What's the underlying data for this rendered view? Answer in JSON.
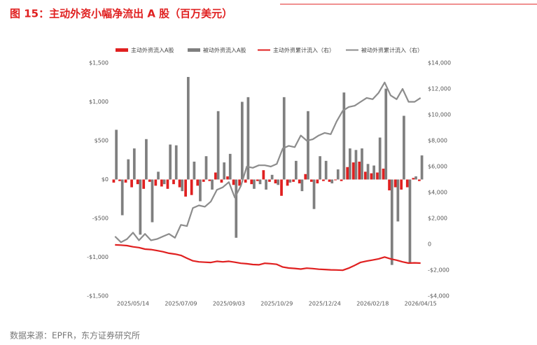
{
  "chart_data": {
    "type": "bar",
    "title": "图 15：主动外资小幅净流出 A 股（百万美元）",
    "source": "数据来源：EPFR，东方证券研究所",
    "categories": [
      null,
      null,
      null,
      "2025/05/14",
      null,
      null,
      null,
      null,
      null,
      null,
      null,
      "2025/07/09",
      null,
      null,
      null,
      null,
      null,
      null,
      null,
      "2025/09/03",
      null,
      null,
      null,
      null,
      null,
      null,
      null,
      "2025/10/29",
      null,
      null,
      null,
      null,
      null,
      null,
      null,
      "2025/12/24",
      null,
      null,
      null,
      null,
      null,
      null,
      null,
      "2026/02/18",
      null,
      null,
      null,
      null,
      null,
      null,
      null,
      "2026/04/15"
    ],
    "series": [
      {
        "name": "主动外资流入A股",
        "type": "bar",
        "color": "#e02020",
        "values": [
          -40,
          -20,
          -40,
          -100,
          -60,
          -120,
          -30,
          -80,
          -90,
          -120,
          -60,
          -100,
          -220,
          -200,
          -80,
          -30,
          -20,
          90,
          -40,
          40,
          -70,
          -80,
          -40,
          -60,
          -20,
          120,
          -30,
          -50,
          -210,
          -80,
          -30,
          -50,
          70,
          -30,
          -50,
          -20,
          -30,
          -10,
          -20,
          160,
          220,
          230,
          100,
          80,
          90,
          140,
          -140,
          -100,
          -130,
          -100,
          20,
          -20
        ]
      },
      {
        "name": "被动外资流入A股",
        "type": "bar",
        "color": "#7f7f7f",
        "values": [
          640,
          -460,
          260,
          400,
          -710,
          520,
          -550,
          100,
          -60,
          450,
          440,
          -150,
          1320,
          230,
          -280,
          300,
          -130,
          880,
          220,
          330,
          -750,
          1000,
          1060,
          -120,
          -60,
          -130,
          60,
          -70,
          1060,
          -40,
          240,
          -150,
          880,
          -380,
          300,
          240,
          -50,
          130,
          1120,
          400,
          380,
          400,
          200,
          180,
          540,
          1170,
          -1100,
          -540,
          820,
          -1080,
          40,
          310
        ]
      },
      {
        "name": "主动外资累计流入（右）",
        "type": "line",
        "axis": "y2",
        "color": "#e02020",
        "values": [
          -50,
          -70,
          -110,
          -200,
          -260,
          -380,
          -410,
          -490,
          -580,
          -700,
          -760,
          -860,
          -1080,
          -1280,
          -1360,
          -1390,
          -1410,
          -1320,
          -1360,
          -1320,
          -1390,
          -1470,
          -1510,
          -1570,
          -1590,
          -1470,
          -1500,
          -1550,
          -1760,
          -1840,
          -1870,
          -1920,
          -1850,
          -1880,
          -1930,
          -1950,
          -1980,
          -1990,
          -2010,
          -1850,
          -1630,
          -1400,
          -1300,
          -1220,
          -1130,
          -990,
          -1130,
          -1230,
          -1360,
          -1460,
          -1440,
          -1460
        ]
      },
      {
        "name": "被动外资累计流入（右）",
        "type": "line",
        "axis": "y2",
        "color": "#8c8c8c",
        "values": [
          600,
          150,
          400,
          900,
          300,
          800,
          300,
          400,
          600,
          800,
          500,
          1500,
          1400,
          2800,
          3000,
          2900,
          3300,
          4200,
          4400,
          4800,
          3600,
          4500,
          6000,
          5900,
          6100,
          6100,
          6000,
          6200,
          7400,
          7600,
          7500,
          8400,
          8000,
          8100,
          8400,
          8600,
          8500,
          9500,
          10300,
          10600,
          10700,
          11000,
          11300,
          11200,
          11700,
          12500,
          11500,
          11200,
          12000,
          11000,
          11000,
          11300
        ]
      }
    ],
    "ylim": [
      -1500,
      1500
    ],
    "yticks": [
      {
        "value": -1500,
        "label": "-$1,500"
      },
      {
        "value": -1000,
        "label": "-$1,000"
      },
      {
        "value": -500,
        "label": "-$500"
      },
      {
        "value": 0,
        "label": "$0"
      },
      {
        "value": 500,
        "label": "$500"
      },
      {
        "value": 1000,
        "label": "$1,000"
      },
      {
        "value": 1500,
        "label": "$1,500"
      }
    ],
    "y2lim": [
      -4000,
      14000
    ],
    "y2ticks": [
      {
        "value": -4000,
        "label": "-$4,000"
      },
      {
        "value": -2000,
        "label": "-$2,000"
      },
      0,
      {
        "value": 2000,
        "label": "$2,000"
      },
      {
        "value": 4000,
        "label": "$4,000"
      },
      {
        "value": 6000,
        "label": "$6,000"
      },
      {
        "value": 8000,
        "label": "$8,000"
      },
      {
        "value": 10000,
        "label": "$10,000"
      },
      {
        "value": 12000,
        "label": "$12,000"
      },
      {
        "value": 14000,
        "label": "$14,000"
      }
    ],
    "grid": false,
    "legend": "top"
  }
}
